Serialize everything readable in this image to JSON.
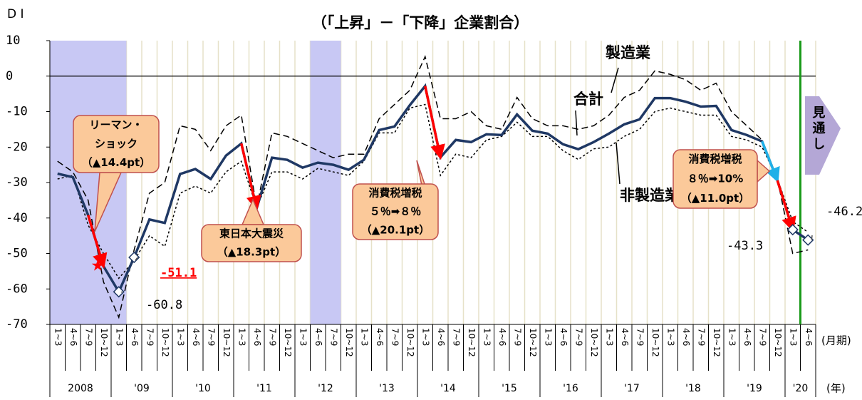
{
  "chart_data": {
    "type": "line",
    "title": "（「上昇」－「下降」企業割合）",
    "y_axis_label": "D I",
    "x_unit": "(月期)",
    "year_unit": "(年)",
    "categories": [
      "1~3",
      "4~6",
      "7~9",
      "10~12",
      "1~3",
      "4~6",
      "7~9",
      "10~12",
      "1~3",
      "4~6",
      "7~9",
      "10~12",
      "1~3",
      "4~6",
      "7~9",
      "10~12",
      "1~3",
      "4~6",
      "7~9",
      "10~12",
      "1~3",
      "4~6",
      "7~9",
      "10~12",
      "1~3",
      "4~6",
      "7~9",
      "10~12",
      "1~3",
      "4~6",
      "7~9",
      "10~12",
      "1~3",
      "4~6",
      "7~9",
      "10~12",
      "1~3",
      "4~6",
      "7~9",
      "10~12",
      "1~3",
      "4~6",
      "7~9",
      "10~12",
      "1~3",
      "4~6",
      "7~9",
      "10~12",
      "1~3",
      "4~6"
    ],
    "years": [
      "2008",
      "'09",
      "'10",
      "'11",
      "'12",
      "'13",
      "'14",
      "'15",
      "'16",
      "'17",
      "'18",
      "'19",
      "'20"
    ],
    "ylim": [
      -70,
      10
    ],
    "yticks": [
      -70,
      -60,
      -50,
      -40,
      -30,
      -20,
      -10,
      0,
      10
    ],
    "series": [
      {
        "name": "合計",
        "color": "#1f3864",
        "style": "solid",
        "values": [
          -27.5,
          -28.5,
          -39.2,
          -53.6,
          -60.8,
          -51.1,
          -40.4,
          -41.4,
          -27.6,
          -26.2,
          -29,
          -22.4,
          -19,
          -37.3,
          -23,
          -23.6,
          -25.8,
          -24.4,
          -25,
          -26.4,
          -23.6,
          -15.2,
          -14.2,
          -8.2,
          -2.8,
          -22.9,
          -18,
          -18.6,
          -16.4,
          -16.6,
          -10.8,
          -15.4,
          -16.2,
          -19.2,
          -20.6,
          -18.6,
          -16.2,
          -13.6,
          -12.2,
          -6.2,
          -6.2,
          -7.2,
          -8.6,
          -8.4,
          -15.2,
          -16.6,
          -18.4,
          -29.4,
          -43.3,
          -46.2
        ],
        "value_labels": [
          null,
          null,
          null,
          null,
          "-60.8",
          "-51.1",
          null,
          null,
          null,
          null,
          null,
          null,
          null,
          null,
          null,
          null,
          null,
          null,
          null,
          null,
          null,
          null,
          null,
          null,
          null,
          null,
          null,
          null,
          null,
          null,
          null,
          null,
          null,
          null,
          null,
          null,
          null,
          null,
          null,
          null,
          null,
          null,
          null,
          null,
          null,
          null,
          null,
          null,
          "-43.3",
          "-46.2"
        ]
      },
      {
        "name": "製造業",
        "color": "#000000",
        "style": "dashed",
        "values": [
          -24,
          -27,
          -35,
          -58,
          -68,
          -49,
          -33,
          -30,
          -14,
          -15,
          -21,
          -14,
          -11,
          -37,
          -16,
          -17,
          -19,
          -21,
          -23,
          -22,
          -22,
          -12,
          -8,
          -4,
          5.5,
          -12,
          -12,
          -10,
          -14,
          -15,
          -6,
          -12,
          -14,
          -14,
          -15,
          -14,
          -11,
          -6,
          -4,
          1.5,
          0.5,
          -1,
          -4,
          -2,
          -10,
          -14,
          -18,
          -29,
          -50,
          -49
        ]
      },
      {
        "name": "非製造業",
        "color": "#000000",
        "style": "dotted",
        "values": [
          -29,
          -28,
          -42,
          -50,
          -57,
          -52,
          -45,
          -48,
          -33,
          -31,
          -33,
          -27,
          -24,
          -37,
          -27,
          -27,
          -29,
          -26,
          -27,
          -28,
          -24,
          -16,
          -16,
          -9,
          -8,
          -28,
          -22,
          -23,
          -18,
          -17,
          -13,
          -17,
          -17,
          -21,
          -23.5,
          -20.5,
          -20,
          -17,
          -15,
          -10,
          -9,
          -10,
          -11,
          -11,
          -17,
          -18,
          -20,
          -29,
          -41,
          -44
        ]
      }
    ],
    "shaded": [
      {
        "start": 0,
        "end": 4
      },
      {
        "start": 17,
        "end": 18
      }
    ],
    "forecast_from": 49,
    "forecast_label": "見通し",
    "drops": [
      {
        "from": 2,
        "to": 3,
        "color": "#ff0000"
      },
      {
        "from": 12,
        "to": 13,
        "color": "#ff0000"
      },
      {
        "from": 24,
        "to": 25,
        "color": "#ff0000"
      },
      {
        "from": 46,
        "to": 47,
        "color": "#1fb0e8"
      },
      {
        "from": 47,
        "to": 48,
        "color": "#ff0000"
      }
    ],
    "annotations": [
      {
        "lines": [
          "リーマン・",
          "ショック",
          "（▲14.4pt）"
        ]
      },
      {
        "lines": [
          "東日本大震災",
          "（▲18.3pt）"
        ]
      },
      {
        "lines": [
          "消費税増税",
          "５％➡８％",
          "（▲20.1pt）"
        ]
      },
      {
        "lines": [
          "消費税増税",
          "８％➡10%",
          "（▲11.0pt）"
        ]
      }
    ]
  }
}
